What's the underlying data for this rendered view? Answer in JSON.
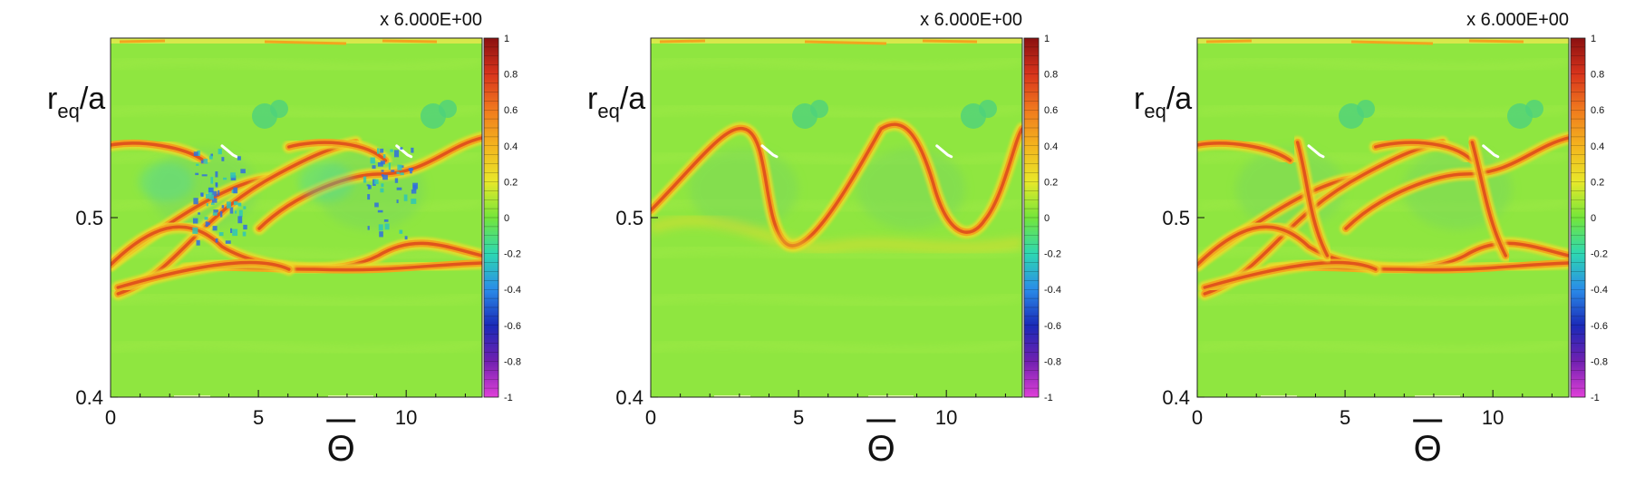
{
  "chart_data": [
    {
      "type": "heatmap",
      "title": "",
      "xlabel": "Θ",
      "xlabel_overbar": true,
      "ylabel": "r",
      "ylabel_sub": "eq",
      "ylabel_suffix": "/a",
      "xlim": [
        0,
        12.57
      ],
      "ylim": [
        0.4,
        0.5
      ],
      "x_ticks": [
        "0",
        "5",
        "10"
      ],
      "y_ticks": [
        "0.4",
        "0.5"
      ],
      "colorbar_range": [
        -1,
        1
      ],
      "colorbar_ticks": [
        "1",
        "0.8",
        "0.6",
        "0.4",
        "0.2",
        "0",
        "-0.2",
        "-0.4",
        "-0.6",
        "-0.8",
        "-1"
      ],
      "scale_label": "x 6.000E+00",
      "variant": "noisy"
    },
    {
      "type": "heatmap",
      "title": "",
      "xlabel": "Θ",
      "xlabel_overbar": true,
      "ylabel": "r",
      "ylabel_sub": "eq",
      "ylabel_suffix": "/a",
      "xlim": [
        0,
        12.57
      ],
      "ylim": [
        0.4,
        0.5
      ],
      "x_ticks": [
        "0",
        "5",
        "10"
      ],
      "y_ticks": [
        "0.4",
        "0.5"
      ],
      "colorbar_range": [
        -1,
        1
      ],
      "colorbar_ticks": [
        "1",
        "0.8",
        "0.6",
        "0.4",
        "0.2",
        "0",
        "-0.2",
        "-0.4",
        "-0.6",
        "-0.8",
        "-1"
      ],
      "scale_label": "x 6.000E+00",
      "variant": "smooth"
    },
    {
      "type": "heatmap",
      "title": "",
      "xlabel": "Θ",
      "xlabel_overbar": true,
      "ylabel": "r",
      "ylabel_sub": "eq",
      "ylabel_suffix": "/a",
      "xlim": [
        0,
        12.57
      ],
      "ylim": [
        0.4,
        0.5
      ],
      "x_ticks": [
        "0",
        "5",
        "10"
      ],
      "y_ticks": [
        "0.4",
        "0.5"
      ],
      "colorbar_range": [
        -1,
        1
      ],
      "colorbar_ticks": [
        "1",
        "0.8",
        "0.6",
        "0.4",
        "0.2",
        "0",
        "-0.2",
        "-0.4",
        "-0.6",
        "-0.8",
        "-1"
      ],
      "scale_label": "x 6.000E+00",
      "variant": "crossed"
    }
  ],
  "colors": {
    "field": "#8fe640",
    "field_light": "#a6ec4a",
    "band_core": "#e0551c",
    "band_mid": "#f2a51e",
    "band_edge": "#ecdc2c",
    "island": "#4ed27c",
    "speckle": "#2f6fe0"
  }
}
